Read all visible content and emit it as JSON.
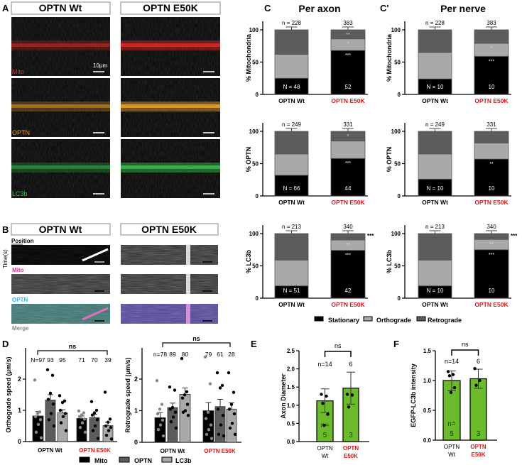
{
  "panel_labels": {
    "A": "A",
    "B": "B",
    "C": "C",
    "C_prime": "C'",
    "D": "D",
    "E": "E",
    "F": "F"
  },
  "panel_a": {
    "headers": [
      "OPTN Wt",
      "OPTN E50K"
    ],
    "channels": [
      {
        "label": "Mito",
        "color": "#e8231f"
      },
      {
        "label": "OPTN",
        "color": "#f0a020"
      },
      {
        "label": "LC3b",
        "color": "#2fc24a"
      }
    ],
    "scale_bar": "10μm"
  },
  "panel_b": {
    "headers": [
      "OPTN Wt",
      "OPTN E50K"
    ],
    "position_label": "Position",
    "time_label": "Time(s)",
    "channels": [
      {
        "label": "Mito",
        "color": "#e8318a"
      },
      {
        "label": "OPTN",
        "color": "#2ab3e8"
      },
      {
        "label": "Merge",
        "color": "#888888"
      }
    ]
  },
  "panel_c_titles": {
    "per_axon": "Per axon",
    "per_nerve": "Per nerve"
  },
  "colors": {
    "stationary": "#000000",
    "orthograde": "#a9a9a9",
    "retrograde": "#5c5c5c",
    "mutant": "#d7191c",
    "green_bar": "#6cbb2c"
  },
  "chart_data": [
    {
      "id": "C-mito-axon",
      "type": "bar",
      "stacked": true,
      "panel": "C",
      "title": "Per axon",
      "ylabel": "% Mitochondria",
      "ylim": [
        0,
        100
      ],
      "yticks": [
        0,
        50,
        100
      ],
      "categories": [
        "OPTN Wt",
        "OPTN E50K"
      ],
      "series": [
        {
          "name": "Stationary",
          "values": [
            25,
            68
          ]
        },
        {
          "name": "Orthograde",
          "values": [
            37,
            18
          ]
        },
        {
          "name": "Retrograde",
          "values": [
            38,
            14
          ]
        }
      ],
      "n_labels": [
        "n = 228",
        "383"
      ],
      "N_labels": [
        "N = 48",
        "52"
      ],
      "significance": [
        [
          "",
          "",
          ""
        ],
        [
          "***",
          "*",
          "**"
        ]
      ],
      "total_sig": [
        "",
        ""
      ]
    },
    {
      "id": "C-mito-nerve",
      "type": "bar",
      "stacked": true,
      "panel": "C'",
      "title": "Per nerve",
      "ylabel": "% Mitochondria",
      "ylim": [
        0,
        100
      ],
      "yticks": [
        0,
        50,
        100
      ],
      "categories": [
        "OPTN Wt",
        "OPTN E50K"
      ],
      "series": [
        {
          "name": "Stationary",
          "values": [
            24,
            59
          ]
        },
        {
          "name": "Orthograde",
          "values": [
            41,
            20
          ]
        },
        {
          "name": "Retrograde",
          "values": [
            35,
            21
          ]
        }
      ],
      "n_labels": [
        "n = 228",
        "383"
      ],
      "N_labels": [
        "N = 10",
        "10"
      ],
      "significance": [
        [
          "",
          "",
          ""
        ],
        [
          "***",
          "*",
          ""
        ]
      ],
      "total_sig": [
        "",
        ""
      ]
    },
    {
      "id": "C-optn-axon",
      "type": "bar",
      "stacked": true,
      "panel": "C",
      "ylabel": "% OPTN",
      "ylim": [
        0,
        100
      ],
      "yticks": [
        0,
        50,
        100
      ],
      "categories": [
        "OPTN Wt",
        "OPTN E50K"
      ],
      "series": [
        {
          "name": "Stationary",
          "values": [
            32,
            58
          ]
        },
        {
          "name": "Orthograde",
          "values": [
            33,
            27
          ]
        },
        {
          "name": "Retrograde",
          "values": [
            35,
            15
          ]
        }
      ],
      "n_labels": [
        "n = 249",
        "331"
      ],
      "N_labels": [
        "N = 66",
        "44"
      ],
      "significance": [
        [
          "",
          "",
          ""
        ],
        [
          "***",
          "",
          "*"
        ]
      ],
      "total_sig": [
        "",
        ""
      ]
    },
    {
      "id": "C-optn-nerve",
      "type": "bar",
      "stacked": true,
      "panel": "C'",
      "ylabel": "% OPTN",
      "ylim": [
        0,
        100
      ],
      "yticks": [
        0,
        50,
        100
      ],
      "categories": [
        "OPTN Wt",
        "OPTN E50K"
      ],
      "series": [
        {
          "name": "Stationary",
          "values": [
            26,
            57
          ]
        },
        {
          "name": "Orthograde",
          "values": [
            39,
            25
          ]
        },
        {
          "name": "Retrograde",
          "values": [
            35,
            18
          ]
        }
      ],
      "n_labels": [
        "n = 249",
        "331"
      ],
      "N_labels": [
        "N = 10",
        "10"
      ],
      "significance": [
        [
          "",
          "",
          ""
        ],
        [
          "**",
          "",
          ""
        ]
      ],
      "total_sig": [
        "",
        ""
      ]
    },
    {
      "id": "C-lc3b-axon",
      "type": "bar",
      "stacked": true,
      "panel": "C",
      "ylabel": "% LC3b",
      "ylim": [
        0,
        100
      ],
      "yticks": [
        0,
        50,
        100
      ],
      "categories": [
        "OPTN Wt",
        "OPTN E50K"
      ],
      "series": [
        {
          "name": "Stationary",
          "values": [
            19,
            74
          ]
        },
        {
          "name": "Orthograde",
          "values": [
            40,
            16
          ]
        },
        {
          "name": "Retrograde",
          "values": [
            41,
            10
          ]
        }
      ],
      "n_labels": [
        "n = 213",
        "340"
      ],
      "N_labels": [
        "N = 51",
        "42"
      ],
      "significance": [
        [
          "",
          "",
          ""
        ],
        [
          "***",
          "**",
          ""
        ]
      ],
      "total_sig": [
        "",
        "***"
      ]
    },
    {
      "id": "C-lc3b-nerve",
      "type": "bar",
      "stacked": true,
      "panel": "C'",
      "ylabel": "% LC3b",
      "ylim": [
        0,
        100
      ],
      "yticks": [
        0,
        50,
        100
      ],
      "categories": [
        "OPTN Wt",
        "OPTN E50K"
      ],
      "series": [
        {
          "name": "Stationary",
          "values": [
            19,
            75
          ]
        },
        {
          "name": "Orthograde",
          "values": [
            40,
            16
          ]
        },
        {
          "name": "Retrograde",
          "values": [
            41,
            9
          ]
        }
      ],
      "n_labels": [
        "n = 213",
        "340"
      ],
      "N_labels": [
        "N = 10",
        "10"
      ],
      "significance": [
        [
          "",
          "",
          ""
        ],
        [
          "***",
          "**",
          ""
        ]
      ],
      "total_sig": [
        "",
        "***"
      ]
    },
    {
      "id": "D-orthograde",
      "type": "bar",
      "panel": "D",
      "ylabel": "Orthograde speed (μm/s)",
      "ylim": [
        0,
        3
      ],
      "yticks": [
        0,
        1,
        2
      ],
      "categories": [
        "OPTN Wt",
        "OPTN E50K"
      ],
      "series": [
        {
          "name": "Mito",
          "values": [
            0.82,
            0.74
          ],
          "sem": [
            0.14,
            0.08
          ],
          "points": [
            [
              1.97,
              0.95,
              0.9,
              0.8,
              0.7,
              0.55,
              0.3,
              0.12
            ],
            [
              0.98,
              0.92,
              0.85,
              0.8,
              0.72,
              0.6,
              0.45,
              0.3
            ]
          ]
        },
        {
          "name": "OPTN",
          "values": [
            1.33,
            0.77
          ],
          "sem": [
            0.17,
            0.1
          ],
          "points": [
            [
              2.3,
              2.12,
              1.55,
              1.35,
              1.2,
              0.9,
              0.7,
              0.5
            ],
            [
              1.28,
              1.0,
              0.92,
              0.85,
              0.7,
              0.5,
              0.35,
              0.1
            ]
          ]
        },
        {
          "name": "LC3b",
          "values": [
            0.92,
            0.51
          ],
          "sem": [
            0.1,
            0.11
          ],
          "points": [
            [
              1.47,
              1.3,
              1.25,
              1.0,
              0.9,
              0.8,
              0.6,
              0.35
            ],
            [
              1.58,
              0.72,
              0.62,
              0.5,
              0.45,
              0.35,
              0.2,
              0.08
            ]
          ]
        }
      ],
      "n_labels": [
        [
          "N=97",
          "93",
          "95"
        ],
        [
          "71",
          "70",
          "39"
        ]
      ],
      "bracket": "ns"
    },
    {
      "id": "D-retrograde",
      "type": "bar",
      "panel": "D",
      "ylabel": "Retrograde speed (μm/s)",
      "ylim": [
        0,
        3
      ],
      "yticks": [
        0,
        1,
        2
      ],
      "categories": [
        "OPTN Wt",
        "OPTN E50K"
      ],
      "series": [
        {
          "name": "Mito",
          "values": [
            0.78,
            1.0
          ],
          "sem": [
            0.16,
            0.26
          ],
          "points": [
            [
              1.95,
              1.2,
              1.05,
              0.9,
              0.7,
              0.55,
              0.4,
              0.2
            ],
            [
              2.7,
              1.85,
              0.95,
              0.75,
              0.55,
              0.4,
              0.25,
              0.12
            ]
          ]
        },
        {
          "name": "OPTN",
          "values": [
            1.1,
            1.13
          ],
          "sem": [
            0.14,
            0.23
          ],
          "points": [
            [
              1.75,
              1.65,
              1.1,
              1.05,
              0.95,
              0.8,
              0.65,
              0.45
            ],
            [
              2.2,
              1.8,
              1.72,
              1.05,
              0.85,
              0.55,
              0.25,
              0.2
            ]
          ]
        },
        {
          "name": "LC3b",
          "values": [
            1.52,
            1.05
          ],
          "sem": [
            0.2,
            0.2
          ],
          "points": [
            [
              2.65,
              1.6,
              1.5,
              1.4,
              1.2,
              1.0,
              0.95,
              0.85
            ],
            [
              2.2,
              1.58,
              1.2,
              1.05,
              0.9,
              0.6,
              0.45,
              0.25
            ]
          ]
        }
      ],
      "n_labels": [
        [
          "n=78",
          "89",
          "80"
        ],
        [
          "79",
          "61",
          "28"
        ]
      ],
      "bracket": "ns"
    },
    {
      "id": "E",
      "type": "bar",
      "panel": "E",
      "ylabel": "Axon Diameter",
      "ylim": [
        0,
        2.5
      ],
      "yticks": [
        "0.0",
        "0.5",
        "1.0",
        "1.5",
        "2.0",
        "2.5"
      ],
      "categories": [
        "OPTN Wt",
        "OPTN E50K"
      ],
      "values": [
        1.12,
        1.47
      ],
      "error_low": [
        0.8,
        1.03
      ],
      "error_high": [
        1.45,
        1.91
      ],
      "points": [
        [
          1.3,
          1.25,
          1.05,
          0.75,
          0.45
        ],
        [
          1.3,
          1.28,
          0.95
        ]
      ],
      "n_top": [
        "n=14",
        "6"
      ],
      "n_bottom": [
        "n=\n5",
        "3"
      ],
      "bracket": "ns"
    },
    {
      "id": "F",
      "type": "bar",
      "panel": "F",
      "ylabel": "EGFP-LC3b intensity",
      "ylim": [
        0,
        1.5
      ],
      "yticks": [
        "0.0",
        "0.5",
        "1.0",
        "1.5"
      ],
      "categories": [
        "OPTN Wt",
        "OPTN E50K"
      ],
      "values": [
        1.0,
        1.03
      ],
      "error_low": [
        0.83,
        0.87
      ],
      "error_high": [
        1.16,
        1.19
      ],
      "points": [
        [
          1.15,
          1.1,
          1.08,
          0.88,
          0.8
        ],
        [
          1.2,
          1.0,
          0.92
        ]
      ],
      "n_top": [
        "n=14",
        "6"
      ],
      "n_bottom": [
        "n=\n5",
        "3"
      ],
      "bracket": "ns"
    }
  ],
  "legend_c": [
    "Stationary",
    "Orthograde",
    "Retrograde"
  ],
  "legend_d": [
    "Mito",
    "OPTN",
    "LC3b"
  ]
}
